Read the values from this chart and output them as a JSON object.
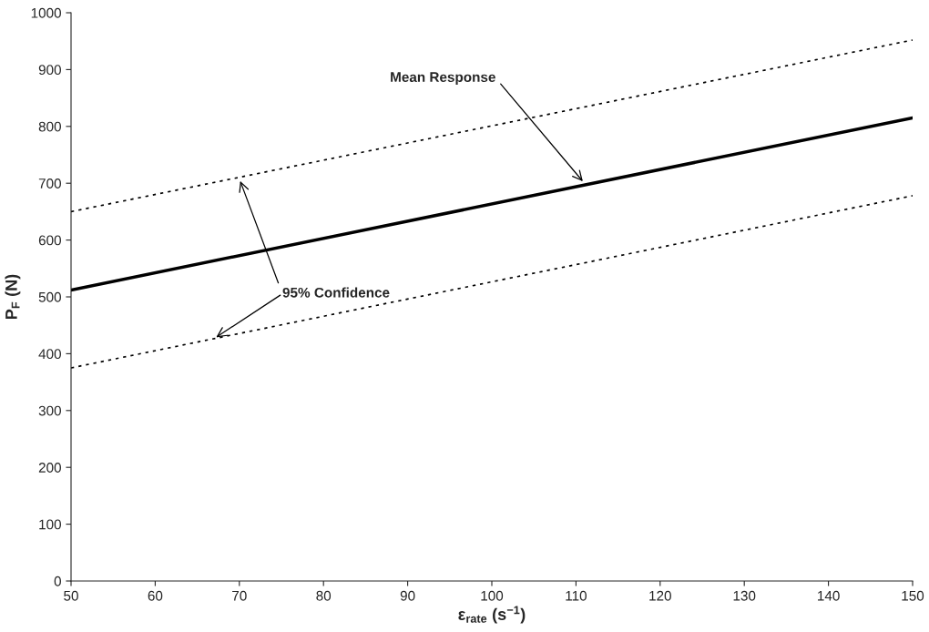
{
  "chart_data": {
    "type": "line",
    "xlabel": "ε$_{rate}$ (s$^{−1}$)",
    "ylabel": "P$_{F}$ (N)",
    "xlim": [
      50,
      150
    ],
    "xticks": [
      50,
      60,
      70,
      80,
      90,
      100,
      110,
      120,
      130,
      140,
      150
    ],
    "ylim": [
      0,
      1000
    ],
    "yticks": [
      0,
      100,
      200,
      300,
      400,
      500,
      600,
      700,
      800,
      900,
      1000
    ],
    "grid": false,
    "legend": false,
    "marker": "none",
    "x": [
      50,
      150
    ],
    "series": [
      {
        "color": "#000000",
        "line_style": "solid",
        "values": [
          512,
          815
        ]
      },
      {
        "color": "#000000",
        "line_style": "dotted",
        "values": [
          650,
          952
        ]
      },
      {
        "color": "#000000",
        "line_style": "dotted",
        "values": [
          375,
          678
        ]
      }
    ],
    "annotations": [
      {
        "text": "Mean Response",
        "x": 111,
        "y": 700
      },
      {
        "text": "95% Confidence",
        "x": 70,
        "y": 708
      }
    ]
  }
}
